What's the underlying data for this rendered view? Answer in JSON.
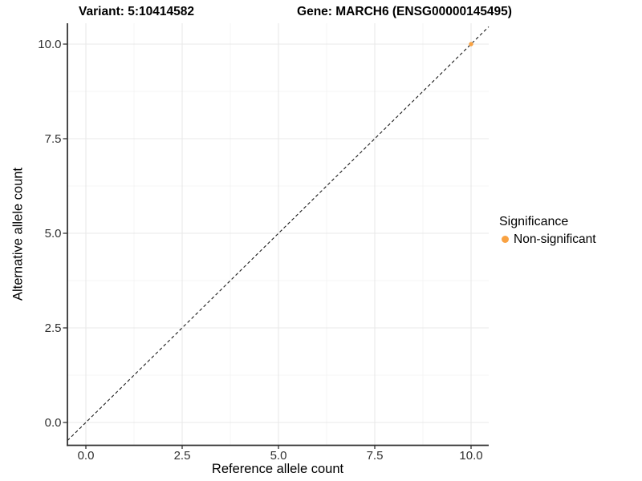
{
  "titles": {
    "variant": "Variant: 5:10414582",
    "gene": "Gene: MARCH6 (ENSG00000145495)"
  },
  "chart_data": {
    "type": "scatter",
    "xlabel": "Reference allele count",
    "ylabel": "Alternative allele count",
    "xlim": [
      -0.5,
      10.5
    ],
    "ylim": [
      -0.5,
      10.5
    ],
    "grid": true,
    "x_ticks": {
      "values": [
        0,
        2.5,
        5,
        7.5,
        10
      ],
      "labels": [
        "0.0",
        "2.5",
        "5.0",
        "7.5",
        "10.0"
      ]
    },
    "y_ticks": {
      "values": [
        0,
        2.5,
        5,
        7.5,
        10
      ],
      "labels": [
        "0.0",
        "2.5",
        "5.0",
        "7.5",
        "10.0"
      ]
    },
    "x_minor_ticks": [
      1.25,
      3.75,
      6.25,
      8.75
    ],
    "y_minor_ticks": [
      1.25,
      3.75,
      6.25,
      8.75
    ],
    "identity_line": {
      "slope": 1,
      "intercept": 0,
      "style": "dashed",
      "color": "#1a1a1a"
    },
    "series": [
      {
        "name": "Non-significant",
        "color": "#F9A242",
        "points": [
          {
            "x": 10,
            "y": 10
          }
        ]
      }
    ],
    "legend": {
      "title": "Significance",
      "position": "right"
    },
    "colors": {
      "axis": "#333333",
      "tick_text": "#303030",
      "grid_major": "#e9e9e9",
      "grid_minor": "#f4f4f4",
      "background": "#ffffff"
    }
  }
}
